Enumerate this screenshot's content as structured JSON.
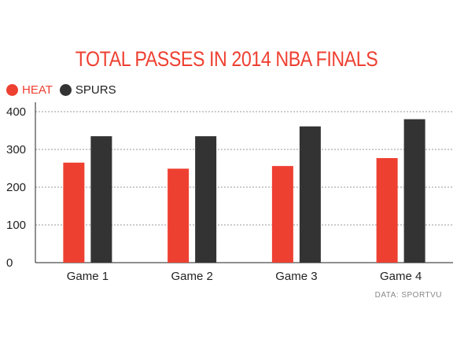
{
  "colors": {
    "heat": "#ee4031",
    "spurs": "#333333",
    "title": "#ee4031",
    "grid": "#9a9a9a",
    "axis": "#222222"
  },
  "chart_data": {
    "type": "bar",
    "title": "TOTAL PASSES IN 2014 NBA FINALS",
    "xlabel": "",
    "ylabel": "",
    "categories": [
      "Game 1",
      "Game 2",
      "Game 3",
      "Game 4"
    ],
    "series": [
      {
        "name": "HEAT",
        "values": [
          265,
          249,
          256,
          277
        ]
      },
      {
        "name": "SPURS",
        "values": [
          335,
          335,
          361,
          380
        ]
      }
    ],
    "ylim": [
      0,
      400
    ],
    "yticks": [
      "0",
      "100",
      "200",
      "300",
      "400"
    ],
    "grid": true,
    "legend": "top-left",
    "source": "DATA: SPORTVU"
  }
}
